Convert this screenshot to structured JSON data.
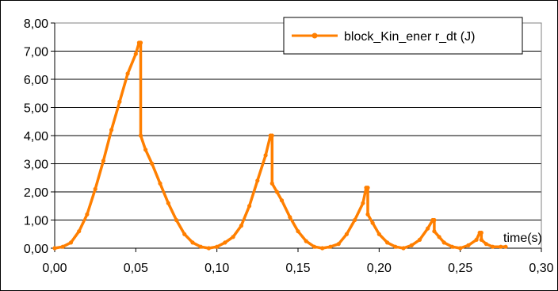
{
  "chart_data": {
    "type": "line",
    "title": "",
    "xlabel": "time(s)",
    "ylabel": "",
    "xlim": [
      0,
      0.3
    ],
    "ylim": [
      0,
      8
    ],
    "xticks": [
      0,
      0.05,
      0.1,
      0.15,
      0.2,
      0.25,
      0.3
    ],
    "xtick_labels": [
      "0,00",
      "0,05",
      "0,10",
      "0,15",
      "0,20",
      "0,25",
      "0,30"
    ],
    "yticks": [
      0,
      1,
      2,
      3,
      4,
      5,
      6,
      7,
      8
    ],
    "ytick_labels": [
      "0,00",
      "1,00",
      "2,00",
      "3,00",
      "4,00",
      "5,00",
      "6,00",
      "7,00",
      "8,00"
    ],
    "grid": "horizontal",
    "legend_position": "top-right",
    "series": [
      {
        "name": "block_Kin_ener r_dt  (J)",
        "color": "#FF7F00",
        "marker": "dot",
        "points": [
          [
            0.0,
            0.0
          ],
          [
            0.005,
            0.05
          ],
          [
            0.01,
            0.2
          ],
          [
            0.015,
            0.6
          ],
          [
            0.02,
            1.2
          ],
          [
            0.025,
            2.1
          ],
          [
            0.03,
            3.1
          ],
          [
            0.035,
            4.2
          ],
          [
            0.04,
            5.2
          ],
          [
            0.045,
            6.2
          ],
          [
            0.05,
            6.9
          ],
          [
            0.052,
            7.3
          ],
          [
            0.053,
            7.3
          ],
          [
            0.053,
            4.0
          ],
          [
            0.056,
            3.5
          ],
          [
            0.06,
            3.0
          ],
          [
            0.065,
            2.3
          ],
          [
            0.07,
            1.6
          ],
          [
            0.075,
            1.0
          ],
          [
            0.08,
            0.5
          ],
          [
            0.085,
            0.2
          ],
          [
            0.09,
            0.05
          ],
          [
            0.095,
            0.0
          ],
          [
            0.1,
            0.05
          ],
          [
            0.105,
            0.2
          ],
          [
            0.11,
            0.4
          ],
          [
            0.115,
            0.8
          ],
          [
            0.12,
            1.5
          ],
          [
            0.125,
            2.4
          ],
          [
            0.13,
            3.3
          ],
          [
            0.133,
            4.0
          ],
          [
            0.134,
            4.0
          ],
          [
            0.134,
            2.3
          ],
          [
            0.137,
            2.0
          ],
          [
            0.14,
            1.7
          ],
          [
            0.145,
            1.1
          ],
          [
            0.15,
            0.6
          ],
          [
            0.155,
            0.25
          ],
          [
            0.16,
            0.05
          ],
          [
            0.165,
            0.0
          ],
          [
            0.17,
            0.05
          ],
          [
            0.175,
            0.15
          ],
          [
            0.18,
            0.5
          ],
          [
            0.185,
            1.0
          ],
          [
            0.19,
            1.6
          ],
          [
            0.192,
            2.15
          ],
          [
            0.193,
            2.15
          ],
          [
            0.193,
            1.2
          ],
          [
            0.196,
            0.9
          ],
          [
            0.2,
            0.5
          ],
          [
            0.205,
            0.2
          ],
          [
            0.21,
            0.05
          ],
          [
            0.215,
            0.0
          ],
          [
            0.22,
            0.1
          ],
          [
            0.225,
            0.3
          ],
          [
            0.23,
            0.7
          ],
          [
            0.233,
            1.0
          ],
          [
            0.234,
            1.0
          ],
          [
            0.234,
            0.6
          ],
          [
            0.237,
            0.4
          ],
          [
            0.24,
            0.2
          ],
          [
            0.245,
            0.05
          ],
          [
            0.25,
            0.0
          ],
          [
            0.255,
            0.1
          ],
          [
            0.26,
            0.3
          ],
          [
            0.262,
            0.55
          ],
          [
            0.263,
            0.55
          ],
          [
            0.263,
            0.3
          ],
          [
            0.266,
            0.15
          ],
          [
            0.27,
            0.05
          ],
          [
            0.275,
            0.05
          ],
          [
            0.278,
            0.05
          ]
        ]
      }
    ]
  }
}
